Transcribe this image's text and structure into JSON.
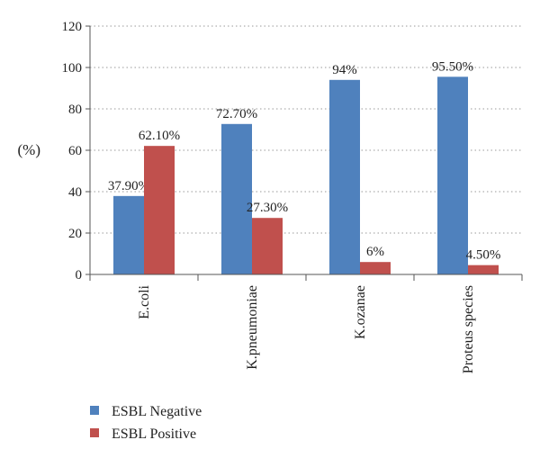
{
  "chart_data": {
    "type": "bar",
    "title": "",
    "xlabel": "",
    "ylabel": "(%)",
    "categories": [
      "E.coli",
      "K.pneumoniae",
      "K.ozanae",
      "Proteus species"
    ],
    "ylim": [
      0,
      120
    ],
    "yticks": [
      0,
      20,
      40,
      60,
      80,
      100,
      120
    ],
    "grid": "horizontal-dotted",
    "legend_position": "bottom-left",
    "series": [
      {
        "name": "ESBL Negative",
        "color": "#4f81bd",
        "values": [
          37.9,
          72.7,
          94,
          95.5
        ],
        "labels": [
          "37.90%",
          "72.70%",
          "94%",
          "95.50%"
        ]
      },
      {
        "name": "ESBL Positive",
        "color": "#c0504d",
        "values": [
          62.1,
          27.3,
          6,
          4.5
        ],
        "labels": [
          "62.10%",
          "27.30%",
          "6%",
          "4.50%"
        ]
      }
    ]
  }
}
